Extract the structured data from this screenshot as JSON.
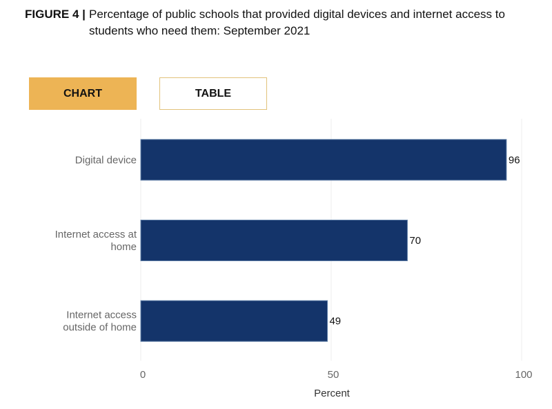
{
  "title": {
    "figure_label": "FIGURE 4 |",
    "text": "Percentage of public schools that provided digital devices and internet access to students who need them: September 2021"
  },
  "tabs": [
    {
      "label": "CHART",
      "active": true
    },
    {
      "label": "TABLE",
      "active": false
    }
  ],
  "colors": {
    "bar": "#14346a",
    "active_tab": "#edb455"
  },
  "chart_data": {
    "type": "bar",
    "orientation": "horizontal",
    "categories": [
      [
        "Digital device"
      ],
      [
        "Internet access at",
        "home"
      ],
      [
        "Internet access",
        "outside of home"
      ]
    ],
    "values": [
      96,
      70,
      49
    ],
    "xlabel": "Percent",
    "xlim": [
      0,
      100
    ],
    "xticks": [
      0,
      50,
      100
    ],
    "grid": true
  }
}
